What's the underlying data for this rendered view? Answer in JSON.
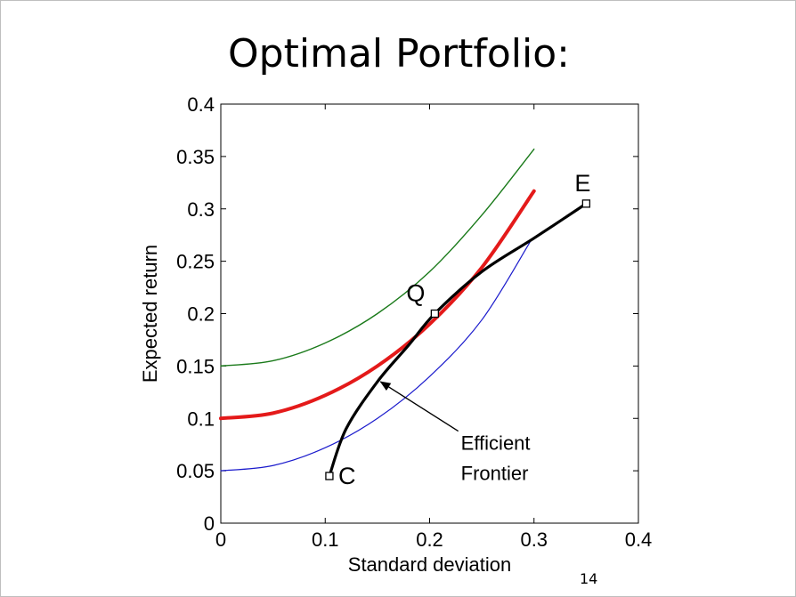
{
  "slide": {
    "title": "Optimal Portfolio:",
    "page_number": "14"
  },
  "chart_data": {
    "type": "line",
    "title": "",
    "xlabel": "Standard deviation",
    "ylabel": "Expected return",
    "xlim": [
      0,
      0.4
    ],
    "ylim": [
      0,
      0.4
    ],
    "x_ticks": [
      "0",
      "0.1",
      "0.2",
      "0.3",
      "0.4"
    ],
    "y_ticks": [
      "0",
      "0.05",
      "0.1",
      "0.15",
      "0.2",
      "0.25",
      "0.3",
      "0.35",
      "0.4"
    ],
    "grid": false,
    "series": [
      {
        "color": "#1a1acc",
        "points": [
          [
            0,
            0.05
          ],
          [
            0.05,
            0.055
          ],
          [
            0.1,
            0.072
          ],
          [
            0.15,
            0.1
          ],
          [
            0.2,
            0.14
          ],
          [
            0.25,
            0.194
          ],
          [
            0.296,
            0.268
          ]
        ]
      },
      {
        "color": "#e41a1a",
        "points": [
          [
            0,
            0.1
          ],
          [
            0.05,
            0.105
          ],
          [
            0.1,
            0.122
          ],
          [
            0.15,
            0.15
          ],
          [
            0.2,
            0.19
          ],
          [
            0.25,
            0.244
          ],
          [
            0.3,
            0.317
          ]
        ]
      },
      {
        "color": "#1a7a1a",
        "points": [
          [
            0,
            0.15
          ],
          [
            0.05,
            0.155
          ],
          [
            0.1,
            0.172
          ],
          [
            0.15,
            0.2
          ],
          [
            0.2,
            0.24
          ],
          [
            0.25,
            0.294
          ],
          [
            0.3,
            0.357
          ]
        ]
      },
      {
        "name": "Efficient Frontier",
        "color": "#000000",
        "points": [
          [
            0.104,
            0.045
          ],
          [
            0.12,
            0.09
          ],
          [
            0.15,
            0.135
          ],
          [
            0.18,
            0.17
          ],
          [
            0.205,
            0.2
          ],
          [
            0.25,
            0.24
          ],
          [
            0.3,
            0.272
          ],
          [
            0.35,
            0.305
          ]
        ]
      }
    ],
    "markers": [
      {
        "label": "C",
        "x": 0.104,
        "y": 0.045
      },
      {
        "label": "Q",
        "x": 0.205,
        "y": 0.2
      },
      {
        "label": "E",
        "x": 0.35,
        "y": 0.305
      }
    ],
    "annotation": {
      "lines": [
        "Efficient",
        "Frontier"
      ],
      "arrow_to": [
        0.153,
        0.135
      ],
      "text_at": [
        0.23,
        0.07
      ]
    }
  }
}
